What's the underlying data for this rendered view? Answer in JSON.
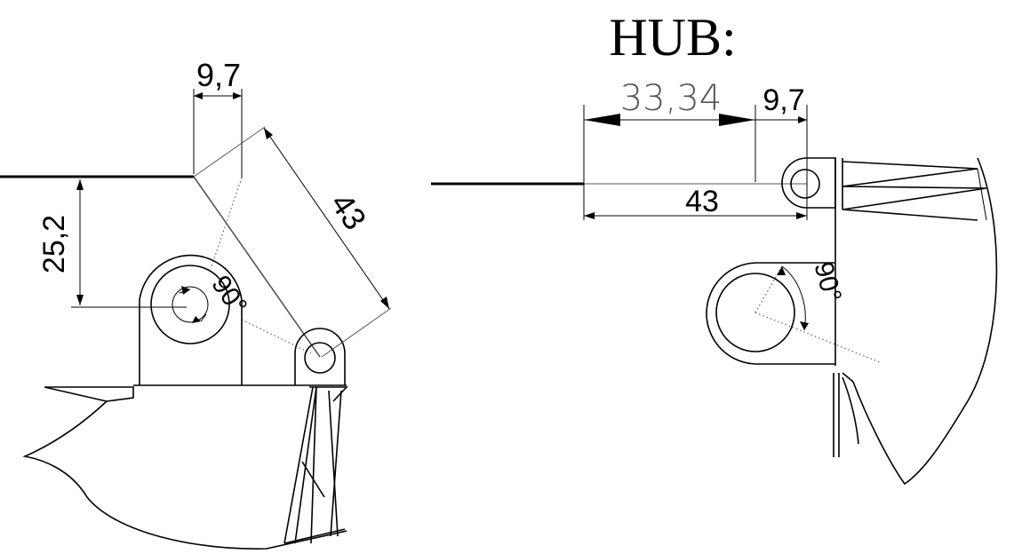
{
  "title": "HUB:",
  "left_view": {
    "dimensions": {
      "offset_horizontal": "9,7",
      "height": "25,2",
      "arm_length": "43",
      "angle": "90°"
    }
  },
  "right_view": {
    "dimensions": {
      "span": "33,34",
      "offset_horizontal": "9,7",
      "arm_length": "43",
      "angle": "90°"
    }
  }
}
